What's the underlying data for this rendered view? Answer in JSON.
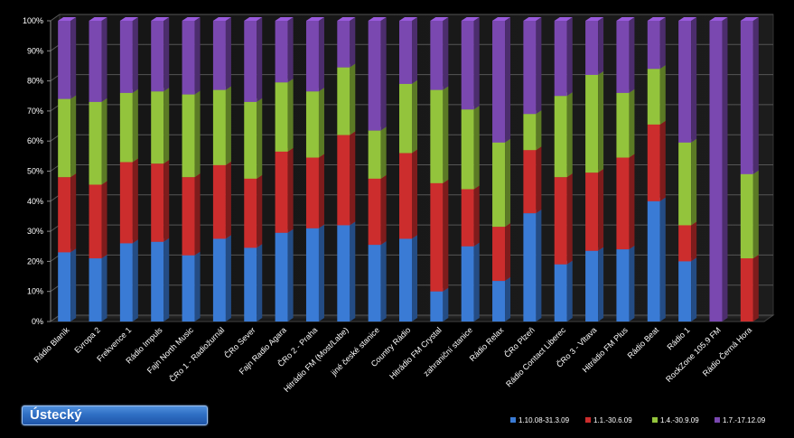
{
  "region_label": "Ústecký",
  "chart_data": {
    "type": "bar",
    "stacked": true,
    "percent": true,
    "title": "",
    "xlabel": "",
    "ylabel": "",
    "ylim": [
      0,
      100
    ],
    "yticks": [
      "0%",
      "10%",
      "20%",
      "30%",
      "40%",
      "50%",
      "60%",
      "70%",
      "80%",
      "90%",
      "100%"
    ],
    "grid": true,
    "legend_position": "bottom-right",
    "categories": [
      "Rádio Blaník",
      "Evropa 2",
      "Frekvence 1",
      "Rádio Impuls",
      "Fajn North Music",
      "ČRo 1 - Radiožurnál",
      "ČRo Sever",
      "Fajn Radio Agara",
      "ČRo 2 - Praha",
      "Hitrádio FM (Most/Labe)",
      "jiné české stanice",
      "Country Rádio",
      "Hitrádio FM Crystal",
      "zahraniční stanice",
      "Rádio Relax",
      "ČRo Plzeň",
      "Rádio Contact Liberec",
      "ČRo 3 - Vltava",
      "Hitrádio FM Plus",
      "Rádio Beat",
      "Rádio 1",
      "RockZone 105,9 FM",
      "Rádio Černá Hora"
    ],
    "series": [
      {
        "name": "1.10.08-31.3.09",
        "color": "#3a7bd5",
        "values": [
          23,
          21,
          26,
          26.5,
          22,
          27.5,
          24.5,
          29.5,
          31,
          32,
          25.5,
          27.5,
          10,
          25,
          13.5,
          36,
          19,
          23.5,
          24,
          40,
          20,
          0,
          0
        ]
      },
      {
        "name": "1.1.-30.6.09",
        "color": "#cc2d2d",
        "values": [
          25,
          24.5,
          27,
          26,
          26,
          24.5,
          23,
          27,
          23.5,
          30,
          22,
          28.5,
          36,
          19,
          18,
          21,
          29,
          26,
          30.5,
          25.5,
          12,
          0,
          21
        ]
      },
      {
        "name": "1.4.-30.9.09",
        "color": "#93c43c",
        "values": [
          26,
          27.5,
          23,
          24,
          27.5,
          25,
          25.5,
          23,
          22,
          22.5,
          16,
          23,
          31,
          26.5,
          28,
          12,
          27,
          32.5,
          21.5,
          18.5,
          27.5,
          0,
          28
        ]
      },
      {
        "name": "1.7.-17.12.09",
        "color": "#7a48b0",
        "values": [
          26,
          27,
          24,
          23.5,
          24.5,
          23,
          27,
          20.5,
          23.5,
          15.5,
          36.5,
          21,
          23,
          29.5,
          40.5,
          31,
          25,
          18,
          24,
          16,
          40.5,
          100,
          51
        ]
      }
    ]
  }
}
